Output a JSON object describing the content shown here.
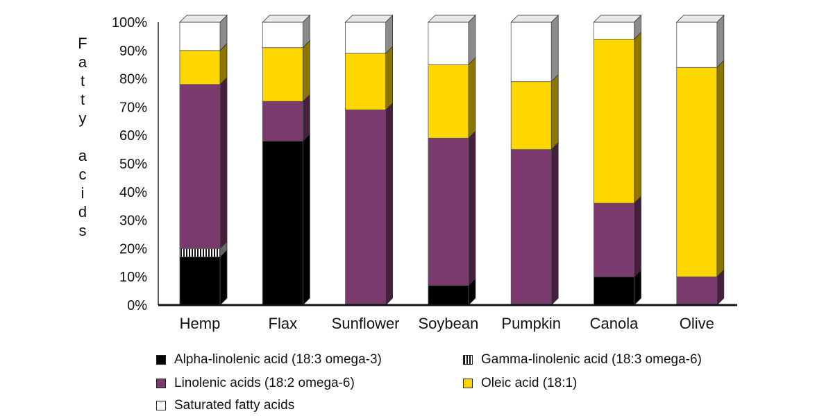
{
  "chart_data": {
    "type": "bar",
    "stacked": true,
    "percent": true,
    "title": "",
    "xlabel": "",
    "ylabel": "Fatty acids",
    "ylim": [
      0,
      100
    ],
    "yticks": [
      "0%",
      "10%",
      "20%",
      "30%",
      "40%",
      "50%",
      "60%",
      "70%",
      "80%",
      "90%",
      "100%"
    ],
    "grid": false,
    "legend_position": "bottom",
    "categories": [
      "Hemp",
      "Flax",
      "Sunflower",
      "Soybean",
      "Pumpkin",
      "Canola",
      "Olive"
    ],
    "series": [
      {
        "name": "Alpha-linolenic acid (18:3 omega-3)",
        "color": "#000000",
        "pattern": "solid",
        "values": [
          17,
          58,
          0,
          7,
          0,
          10,
          0
        ]
      },
      {
        "name": "Gamma-linolenic acid (18:3 omega-6)",
        "color": "#ffffff",
        "pattern": "vertical-stripes",
        "values": [
          3,
          0,
          0,
          0,
          0,
          0,
          0
        ]
      },
      {
        "name": "Linolenic acids (18:2 omega-6)",
        "color": "#7b3a6e",
        "pattern": "solid",
        "values": [
          58,
          14,
          69,
          52,
          55,
          26,
          10
        ]
      },
      {
        "name": "Oleic acid (18:1)",
        "color": "#ffd700",
        "pattern": "solid",
        "values": [
          12,
          19,
          20,
          26,
          24,
          58,
          74
        ]
      },
      {
        "name": "Saturated fatty acids",
        "color": "#ffffff",
        "pattern": "solid",
        "values": [
          10,
          9,
          11,
          15,
          21,
          6,
          16
        ]
      }
    ]
  }
}
